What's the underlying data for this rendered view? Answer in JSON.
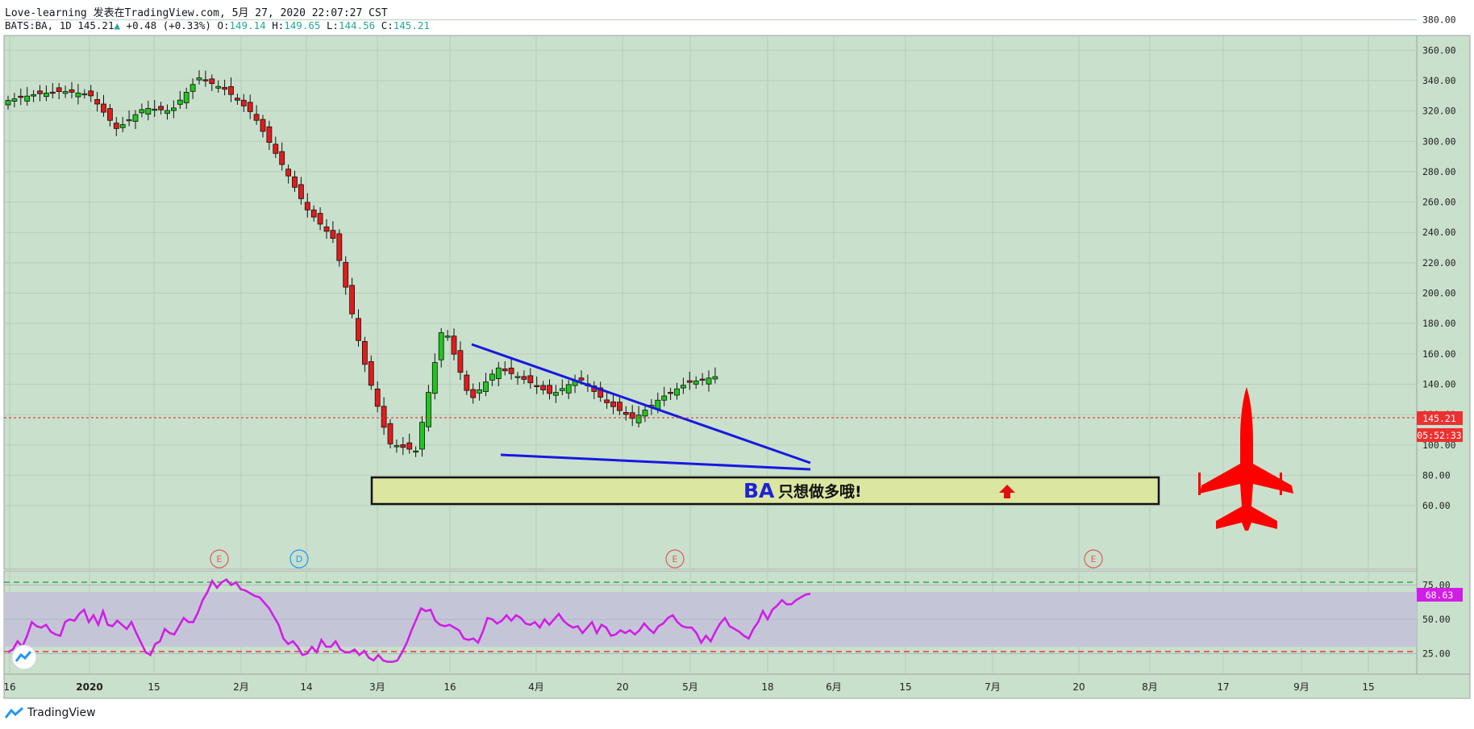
{
  "header": {
    "line1": "Love-learning 发表在TradingView.com, 5月 27, 2020 22:07:27 CST",
    "symbol": "BATS:BA, 1D",
    "last": "145.21",
    "change": "+0.48 (+0.33%)",
    "o_label": "O:",
    "o": "149.14",
    "h_label": "H:",
    "h": "149.65",
    "l_label": "L:",
    "l": "144.56",
    "c_label": "C:",
    "c": "145.21"
  },
  "price_tag": "145.21",
  "countdown_tag": "05:52:33",
  "rsi_tag": "68.63",
  "banner_text_ba": "BA",
  "banner_text_cn": "只想做多哦!",
  "footer_brand": "TradingView",
  "event_markers": [
    {
      "label": "E",
      "color": "#e05a5a",
      "x_index": 0
    },
    {
      "label": "D",
      "color": "#2196f3",
      "x_index": 1
    },
    {
      "label": "E",
      "color": "#e05a5a",
      "x_index": 2
    },
    {
      "label": "E",
      "color": "#e05a5a",
      "x_index": 3
    }
  ],
  "chart_data": [
    {
      "type": "candlestick",
      "title": "",
      "price_axis_ticks": [
        "380.00",
        "360.00",
        "340.00",
        "320.00",
        "300.00",
        "280.00",
        "260.00",
        "240.00",
        "220.00",
        "200.00",
        "180.00",
        "160.00",
        "140.00",
        "120.00",
        "100.00",
        "80.00",
        "60.00"
      ],
      "ylim": [
        45,
        395
      ],
      "time_axis_ticks": [
        "16",
        "2020",
        "15",
        "2月",
        "14",
        "3月",
        "16",
        "4月",
        "20",
        "5月",
        "18",
        "6月",
        "15",
        "7月",
        "20",
        "8月",
        "17",
        "9月",
        "15"
      ],
      "current_price": 145.21,
      "approx_daily_closes": [
        {
          "period": "Dec 16",
          "close": 327
        },
        {
          "period": "Dec 23",
          "close": 331
        },
        {
          "period": "Jan 2",
          "close": 333
        },
        {
          "period": "Jan 13",
          "close": 331
        },
        {
          "period": "Jan 21",
          "close": 308
        },
        {
          "period": "Jan 28",
          "close": 322
        },
        {
          "period": "Feb 4",
          "close": 320
        },
        {
          "period": "Feb 11",
          "close": 342
        },
        {
          "period": "Feb 20",
          "close": 334
        },
        {
          "period": "Feb 24",
          "close": 318
        },
        {
          "period": "Mar 2",
          "close": 287
        },
        {
          "period": "Mar 9",
          "close": 255
        },
        {
          "period": "Mar 12",
          "close": 235
        },
        {
          "period": "Mar 16",
          "close": 160
        },
        {
          "period": "Mar 18",
          "close": 101
        },
        {
          "period": "Mar 23",
          "close": 96
        },
        {
          "period": "Mar 26",
          "close": 180
        },
        {
          "period": "Apr 3",
          "close": 129
        },
        {
          "period": "Apr 9",
          "close": 151
        },
        {
          "period": "Apr 17",
          "close": 143
        },
        {
          "period": "Apr 24",
          "close": 133
        },
        {
          "period": "Apr 30",
          "close": 144
        },
        {
          "period": "May 7",
          "close": 128
        },
        {
          "period": "May 14",
          "close": 117
        },
        {
          "period": "May 19",
          "close": 131
        },
        {
          "period": "May 22",
          "close": 141
        },
        {
          "period": "May 27",
          "close": 145
        }
      ],
      "trendlines": [
        {
          "name": "upper wedge line",
          "from": {
            "date": "Mar 24",
            "price": 195
          },
          "to": {
            "date": "May 28",
            "price": 117
          }
        },
        {
          "name": "lower wedge line",
          "from": {
            "date": "Mar 27",
            "price": 121
          },
          "to": {
            "date": "May 28",
            "price": 112
          }
        }
      ],
      "support_zone": {
        "price_from": 89,
        "price_to": 107,
        "label": "BA 只想做多哦!"
      }
    },
    {
      "type": "line",
      "title": "",
      "series": [
        {
          "values": [
            26,
            28,
            34,
            30,
            38,
            48,
            45,
            44,
            46,
            41,
            39,
            38,
            48,
            50,
            49,
            54,
            57,
            48,
            53,
            46,
            56,
            46,
            45,
            49,
            46,
            43,
            48,
            40,
            33,
            26,
            24,
            32,
            34,
            43,
            40,
            39,
            45,
            51,
            48,
            48,
            55,
            64,
            70,
            78,
            73,
            77,
            79,
            75,
            77,
            72,
            71,
            69,
            67,
            66,
            62,
            58,
            52,
            46,
            36,
            32,
            34,
            30,
            24,
            25,
            30,
            26,
            35,
            30,
            30,
            34,
            28,
            26,
            26,
            28,
            24,
            27,
            22,
            20,
            24,
            20,
            19,
            19,
            20,
            26,
            33,
            42,
            50,
            58,
            56,
            57,
            49,
            46,
            45,
            46,
            44,
            42,
            36,
            35,
            36,
            33,
            41,
            51,
            50,
            47,
            49,
            53,
            49,
            53,
            51,
            47,
            46,
            48,
            44,
            50,
            46,
            50,
            54,
            49,
            46,
            44,
            45,
            40,
            44,
            48,
            40,
            46,
            44,
            38,
            39,
            42,
            40,
            42,
            39,
            42,
            47,
            43,
            40,
            45,
            47,
            51,
            53,
            48,
            45,
            44,
            44,
            40,
            33,
            38,
            34,
            41,
            47,
            51,
            45,
            43,
            41,
            38,
            36,
            43,
            48,
            56,
            50,
            57,
            60,
            64,
            61,
            61,
            64,
            66,
            68,
            68.63
          ]
        }
      ],
      "axis_ticks": [
        "75.00",
        "50.00",
        "25.00"
      ],
      "ylim": [
        12,
        88
      ],
      "overbought": 70,
      "oversold": 30
    }
  ]
}
